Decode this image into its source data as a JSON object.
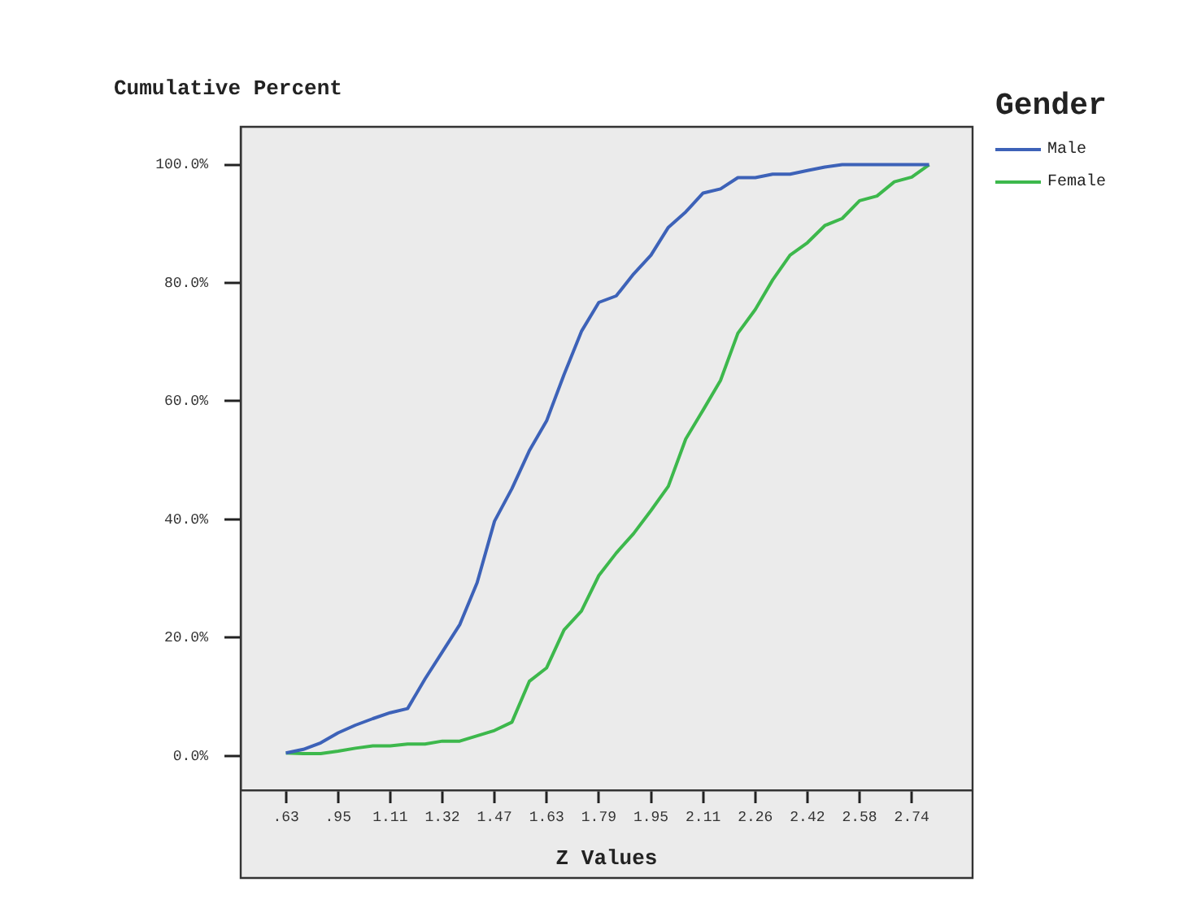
{
  "chart_data": {
    "type": "line",
    "xlabel": "Z Values",
    "ylabel": "Cumulative Percent",
    "legend_title": "Gender",
    "categories": [
      ".63",
      null,
      null,
      ".95",
      null,
      null,
      "1.11",
      null,
      null,
      "1.32",
      null,
      null,
      "1.47",
      null,
      null,
      "1.63",
      null,
      null,
      "1.79",
      null,
      null,
      "1.95",
      null,
      null,
      "2.11",
      null,
      null,
      "2.26",
      null,
      null,
      "2.42",
      null,
      null,
      "2.58",
      null,
      null,
      "2.74",
      null
    ],
    "series": [
      {
        "name": "Male",
        "color": "#3d62b8",
        "values": [
          0.5,
          1.1,
          2.2,
          3.9,
          5.2,
          6.3,
          7.3,
          8.0,
          13.0,
          17.6,
          22.2,
          29.3,
          39.7,
          45.2,
          51.6,
          56.7,
          64.5,
          71.8,
          76.7,
          77.8,
          81.5,
          84.7,
          89.4,
          92.0,
          95.2,
          95.9,
          97.8,
          97.8,
          98.4,
          98.4,
          99.0,
          99.6,
          100,
          100,
          100,
          100,
          100,
          100
        ]
      },
      {
        "name": "Female",
        "color": "#3db84c",
        "values": [
          0.5,
          0.4,
          0.4,
          0.8,
          1.3,
          1.7,
          1.7,
          2.0,
          2.0,
          2.5,
          2.5,
          3.4,
          4.3,
          5.7,
          12.6,
          14.9,
          21.3,
          24.5,
          30.5,
          34.3,
          37.6,
          41.5,
          45.6,
          53.6,
          58.5,
          63.5,
          71.5,
          75.5,
          80.5,
          84.7,
          86.8,
          89.7,
          90.9,
          93.9,
          94.7,
          97.1,
          97.9,
          100
        ]
      }
    ],
    "ylim": [
      -5.8,
      106.4
    ],
    "yticks": [
      {
        "value": 0,
        "label": "0.0%"
      },
      {
        "value": 20,
        "label": "20.0%"
      },
      {
        "value": 40,
        "label": "40.0%"
      },
      {
        "value": 60,
        "label": "60.0%"
      },
      {
        "value": 80,
        "label": "80.0%"
      },
      {
        "value": 100,
        "label": "100.0%"
      }
    ],
    "grid": false,
    "legend": "right",
    "marker": "none",
    "line_style": "solid"
  }
}
